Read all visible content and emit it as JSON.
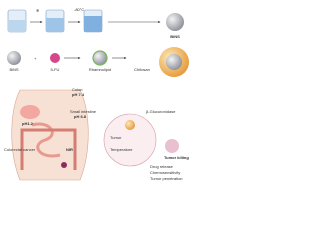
{
  "synthesis": {
    "temperature": "-80°C",
    "product": "BiNS"
  },
  "assembly": {
    "start": "BiNS",
    "drug": "5-FU",
    "coating1": "Rhamnolipid",
    "coating2": "Chitosan"
  },
  "gi_tract": {
    "colon": "Colon",
    "colon_ph": "pH 7.4",
    "small_intestine": "Small intestine",
    "small_intestine_ph": "pH 6.8",
    "stomach_ph": "pH1.2",
    "light": "NIR",
    "disease": "Colorectal cancer"
  },
  "tumor_site": {
    "enzyme": "β-Glucuronidase",
    "tumor": "Tumor",
    "temperature": "Temperature",
    "killing": "Tumor killing",
    "effects": [
      "Drug release",
      "Chemosensitivity",
      "Tumor penetration"
    ]
  }
}
